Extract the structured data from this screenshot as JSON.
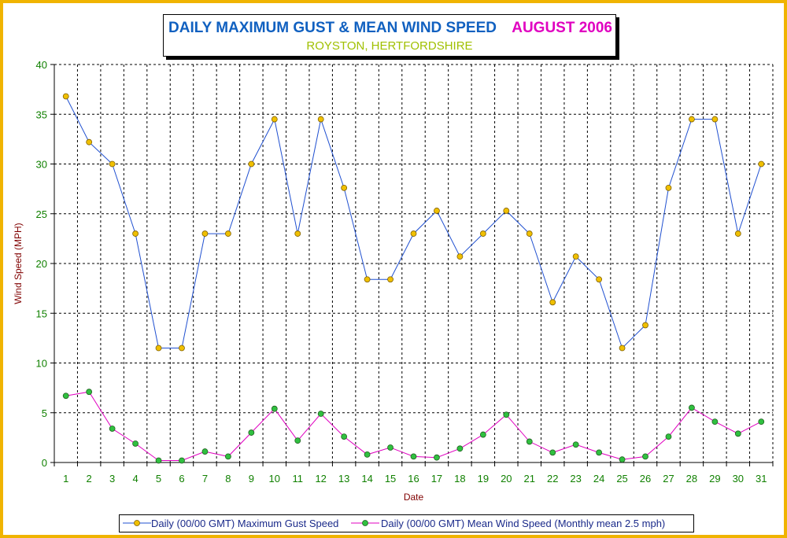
{
  "title": {
    "main": "DAILY MAXIMUM GUST & MEAN WIND SPEED",
    "month": "AUGUST 2006",
    "subtitle": "ROYSTON, HERTFORDSHIRE"
  },
  "colors": {
    "border": "#f0b400",
    "gust_line": "#2050d0",
    "gust_marker": "#f0c000",
    "mean_line": "#e000c0",
    "mean_marker": "#30c040",
    "tick_text": "#108000",
    "axis_label": "#800000"
  },
  "chart_data": {
    "type": "line",
    "xlabel": "Date",
    "ylabel": "Wind Speed (MPH)",
    "ylim": [
      0,
      40
    ],
    "yticks": [
      0,
      5,
      10,
      15,
      20,
      25,
      30,
      35,
      40
    ],
    "grid": true,
    "legend_position": "bottom",
    "categories": [
      "1",
      "2",
      "3",
      "4",
      "5",
      "6",
      "7",
      "8",
      "9",
      "10",
      "11",
      "12",
      "13",
      "14",
      "15",
      "16",
      "17",
      "18",
      "19",
      "20",
      "21",
      "22",
      "23",
      "24",
      "25",
      "26",
      "27",
      "28",
      "29",
      "30",
      "31"
    ],
    "series": [
      {
        "name": "Daily (00/00 GMT) Maximum Gust Speed",
        "values": [
          36.8,
          32.2,
          30.0,
          23.0,
          11.5,
          11.5,
          23.0,
          23.0,
          30.0,
          34.5,
          23.0,
          34.5,
          27.6,
          18.4,
          18.4,
          23.0,
          25.3,
          20.7,
          23.0,
          25.3,
          23.0,
          16.1,
          20.7,
          18.4,
          11.5,
          13.8,
          27.6,
          34.5,
          34.5,
          23.0,
          30.0
        ]
      },
      {
        "name": "Daily (00/00 GMT) Mean Wind Speed (Monthly mean 2.5 mph)",
        "values": [
          6.7,
          7.1,
          3.4,
          1.9,
          0.2,
          0.2,
          1.1,
          0.6,
          3.0,
          5.4,
          2.2,
          4.9,
          2.6,
          0.8,
          1.5,
          0.6,
          0.5,
          1.4,
          2.8,
          4.8,
          2.1,
          1.0,
          1.8,
          1.0,
          0.3,
          0.6,
          2.6,
          5.5,
          4.1,
          2.9,
          4.1
        ]
      }
    ]
  }
}
